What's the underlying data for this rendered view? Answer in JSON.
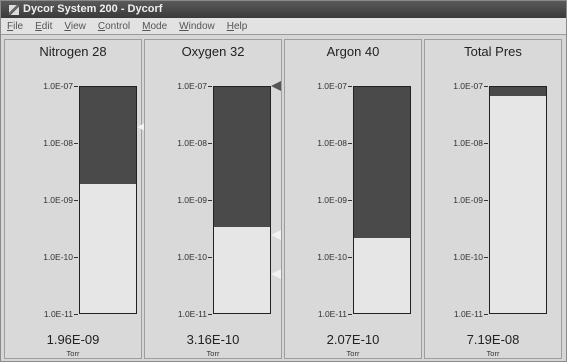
{
  "window": {
    "title": "Dycor System 200 - Dycorf"
  },
  "menu": [
    "File",
    "Edit",
    "View",
    "Control",
    "Mode",
    "Window",
    "Help"
  ],
  "axis": {
    "ticks": [
      "1.0E-07",
      "1.0E-08",
      "1.0E-09",
      "1.0E-10",
      "1.0E-11"
    ],
    "scale": "log",
    "range_torr": [
      1e-11,
      1e-07
    ]
  },
  "panels": [
    {
      "name": "Nitrogen 28",
      "value": "1.96E-09",
      "unit": "Torr",
      "fill_log_fraction": 0.57,
      "markers": [
        {
          "position": 0.18,
          "style": "light"
        }
      ]
    },
    {
      "name": "Oxygen 32",
      "value": "3.16E-10",
      "unit": "Torr",
      "fill_log_fraction": 0.38,
      "markers": [
        {
          "position": 0.0,
          "style": "dark"
        },
        {
          "position": 0.66,
          "style": "light"
        },
        {
          "position": 0.83,
          "style": "light"
        }
      ]
    },
    {
      "name": "Argon 40",
      "value": "2.07E-10",
      "unit": "Torr",
      "fill_log_fraction": 0.33,
      "markers": []
    },
    {
      "name": "Total Pres",
      "value": "7.19E-08",
      "unit": "Torr",
      "fill_log_fraction": 0.96,
      "markers": []
    }
  ]
}
